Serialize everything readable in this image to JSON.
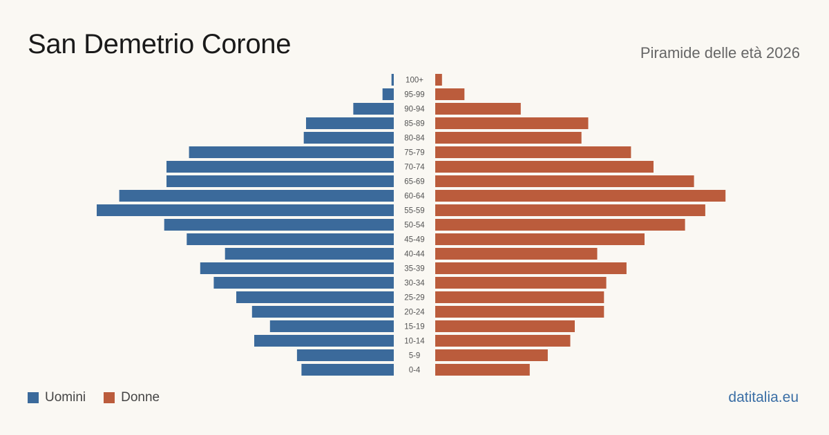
{
  "title": "San Demetrio Corone",
  "subtitle": "Piramide delle età 2026",
  "brand": "datitalia.eu",
  "colors": {
    "men": "#3b6a9b",
    "women": "#bb5c3c"
  },
  "chart_data": {
    "type": "bar",
    "orientation": "horizontal-pyramid",
    "categories": [
      "100+",
      "95-99",
      "90-94",
      "85-89",
      "80-84",
      "75-79",
      "70-74",
      "65-69",
      "60-64",
      "55-59",
      "50-54",
      "45-49",
      "40-44",
      "35-39",
      "30-34",
      "25-29",
      "20-24",
      "15-19",
      "10-14",
      "5-9",
      "0-4"
    ],
    "series": [
      {
        "name": "Uomini",
        "values": [
          1,
          5,
          18,
          39,
          40,
          91,
          101,
          101,
          122,
          132,
          102,
          92,
          75,
          86,
          80,
          70,
          63,
          55,
          62,
          43,
          41
        ]
      },
      {
        "name": "Donne",
        "values": [
          3,
          13,
          38,
          68,
          65,
          87,
          97,
          115,
          129,
          120,
          111,
          93,
          72,
          85,
          76,
          75,
          75,
          62,
          60,
          50,
          42
        ]
      }
    ],
    "axis_visible": false,
    "grid": false,
    "legend_position": "bottom-left"
  }
}
